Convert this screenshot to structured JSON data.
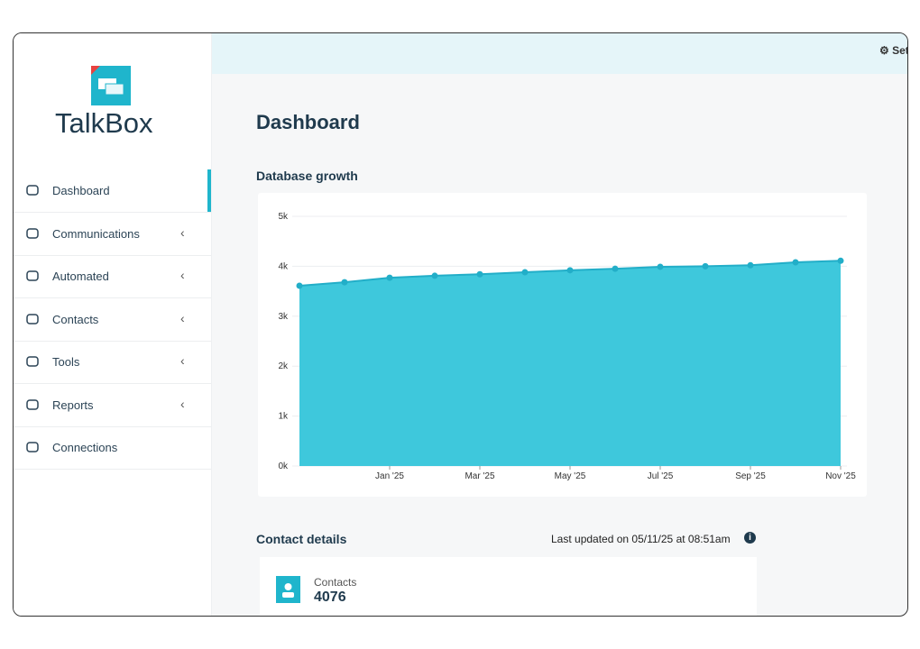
{
  "brand": "TalkBox",
  "topbar": {
    "settings": "Settings"
  },
  "nav": [
    "Dashboard",
    "Communications",
    "Automated",
    "Contacts",
    "Tools",
    "Reports",
    "Connections"
  ],
  "page_title": "Dashboard",
  "chart_data": {
    "type": "area",
    "title": "Database growth",
    "categories": [
      null,
      null,
      "Jan '25",
      null,
      "Mar '25",
      null,
      "May '25",
      null,
      "Jul '25",
      null,
      "Sep '25",
      null,
      "Nov '25"
    ],
    "values": [
      3610,
      3680,
      3770,
      3810,
      3840,
      3880,
      3920,
      3950,
      3990,
      4000,
      4020,
      4080,
      4110
    ],
    "color": "#3ec8dc",
    "ylim": [
      0,
      5000
    ],
    "yticks": [
      {
        "value": 0,
        "label": "0k"
      },
      {
        "value": 1000,
        "label": "1k"
      },
      {
        "value": 2000,
        "label": "2k"
      },
      {
        "value": 3000,
        "label": "3k"
      },
      {
        "value": 4000,
        "label": "4k"
      },
      {
        "value": 5000,
        "label": "5k"
      }
    ],
    "grid": true
  },
  "contact_details": {
    "title": "Contact details",
    "last_updated": "Last updated on 05/11/25 at 08:51am",
    "label": "Contacts",
    "value": "4076"
  }
}
